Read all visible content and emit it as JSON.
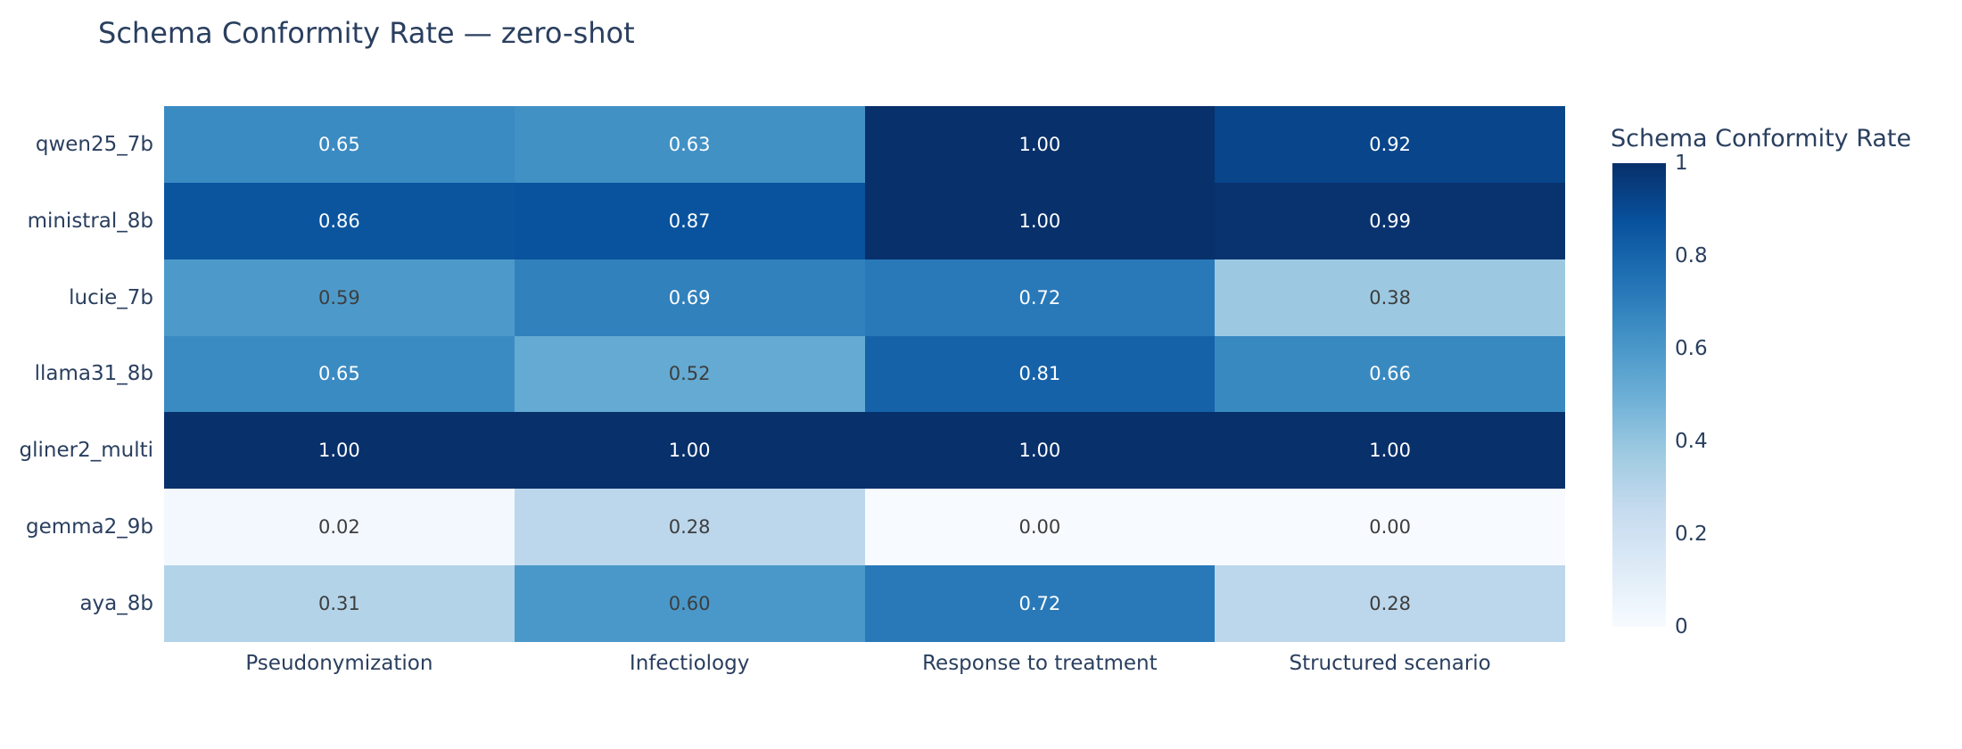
{
  "title": "Schema Conformity Rate — zero-shot",
  "chart_data": {
    "type": "heatmap",
    "title": "Schema Conformity Rate — zero-shot",
    "x_categories": [
      "Pseudonymization",
      "Infectiology",
      "Response to treatment",
      "Structured scenario"
    ],
    "y_categories": [
      "qwen25_7b",
      "ministral_8b",
      "lucie_7b",
      "llama31_8b",
      "gliner2_multi",
      "gemma2_9b",
      "aya_8b"
    ],
    "values": [
      [
        0.65,
        0.63,
        1.0,
        0.92
      ],
      [
        0.86,
        0.87,
        1.0,
        0.99
      ],
      [
        0.59,
        0.69,
        0.72,
        0.38
      ],
      [
        0.65,
        0.52,
        0.81,
        0.66
      ],
      [
        1.0,
        1.0,
        1.0,
        1.0
      ],
      [
        0.02,
        0.28,
        0.0,
        0.0
      ],
      [
        0.31,
        0.6,
        0.72,
        0.28
      ]
    ],
    "value_decimals": 2,
    "colorscale": {
      "name": "Blues",
      "stops": [
        "#f7fbff",
        "#deebf7",
        "#c6dbef",
        "#9ecae1",
        "#6baed6",
        "#4292c6",
        "#2171b5",
        "#08519c",
        "#08306b"
      ]
    },
    "colorbar": {
      "title": "Schema Conformity Rate",
      "tick_labels": [
        "1",
        "0.8",
        "0.6",
        "0.4",
        "0.2",
        "0"
      ],
      "tick_values": [
        1,
        0.8,
        0.6,
        0.4,
        0.2,
        0
      ],
      "range": [
        0,
        1
      ],
      "position": "right"
    },
    "grid": false
  },
  "colors": {
    "background": "#ffffff",
    "title_text": "#2a3f5f",
    "axis_text": "#2a3f5f",
    "cell_text_dark": "#3d3d3d",
    "cell_text_light": "#ffffff"
  }
}
